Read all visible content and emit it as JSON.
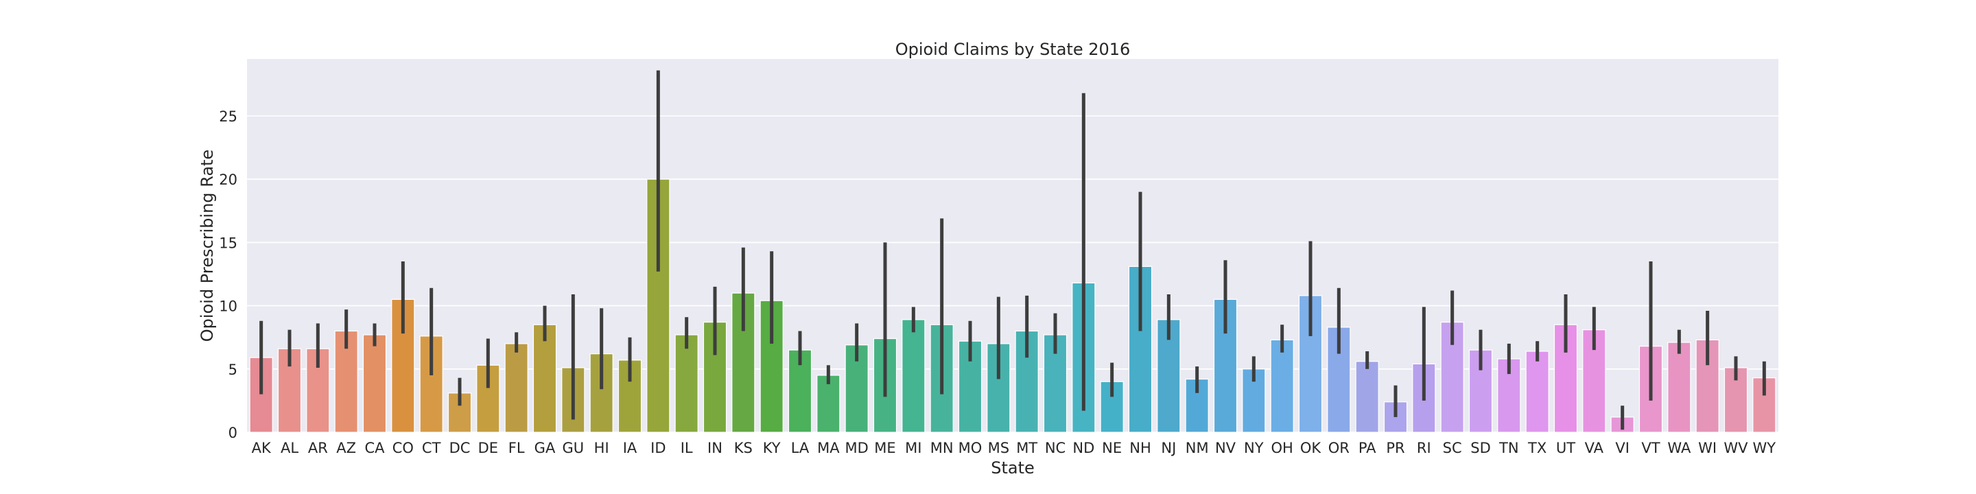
{
  "chart_data": {
    "type": "bar",
    "title": "Opioid Claims by State 2016",
    "xlabel": "State",
    "ylabel": "Opioid Prescribing Rate",
    "ylim": [
      0,
      29.5
    ],
    "yticks": [
      0,
      5,
      10,
      15,
      20,
      25
    ],
    "grid": true,
    "background": "#eaeaf2",
    "errorbar_color": "#3d3d3d",
    "categories": [
      "AK",
      "AL",
      "AR",
      "AZ",
      "CA",
      "CO",
      "CT",
      "DC",
      "DE",
      "FL",
      "GA",
      "GU",
      "HI",
      "IA",
      "ID",
      "IL",
      "IN",
      "KS",
      "KY",
      "LA",
      "MA",
      "MD",
      "ME",
      "MI",
      "MN",
      "MO",
      "MS",
      "MT",
      "NC",
      "ND",
      "NE",
      "NH",
      "NJ",
      "NM",
      "NV",
      "NY",
      "OH",
      "OK",
      "OR",
      "PA",
      "PR",
      "RI",
      "SC",
      "SD",
      "TN",
      "TX",
      "UT",
      "VA",
      "VI",
      "VT",
      "WA",
      "WI",
      "WV",
      "WY"
    ],
    "values": [
      5.9,
      6.6,
      6.6,
      8.0,
      7.7,
      10.5,
      7.6,
      3.1,
      5.3,
      7.0,
      8.5,
      5.1,
      6.2,
      5.7,
      20.0,
      7.7,
      8.7,
      11.0,
      10.4,
      6.5,
      4.5,
      6.9,
      7.4,
      8.9,
      8.5,
      7.2,
      7.0,
      8.0,
      7.7,
      11.8,
      4.0,
      13.1,
      8.9,
      4.2,
      10.5,
      5.0,
      7.3,
      10.8,
      8.3,
      5.6,
      2.4,
      5.4,
      8.7,
      6.5,
      5.8,
      6.4,
      8.5,
      8.1,
      1.2,
      6.8,
      7.1,
      7.3,
      5.1,
      4.3
    ],
    "error_low": [
      3.0,
      5.2,
      5.1,
      6.6,
      6.8,
      7.8,
      4.5,
      2.1,
      3.5,
      6.3,
      7.2,
      1.0,
      3.4,
      4.0,
      12.7,
      6.6,
      6.1,
      8.0,
      7.0,
      5.3,
      3.8,
      5.6,
      2.8,
      7.9,
      3.0,
      5.6,
      4.2,
      5.9,
      6.2,
      1.7,
      2.8,
      8.0,
      7.3,
      3.1,
      7.8,
      4.0,
      6.3,
      7.6,
      6.2,
      5.0,
      1.2,
      2.5,
      6.9,
      4.9,
      4.6,
      5.6,
      6.3,
      6.5,
      0.2,
      2.5,
      6.2,
      5.3,
      4.1,
      2.9
    ],
    "error_high": [
      8.8,
      8.1,
      8.6,
      9.7,
      8.6,
      13.5,
      11.4,
      4.3,
      7.4,
      7.9,
      10.0,
      10.9,
      9.8,
      7.5,
      28.6,
      9.1,
      11.5,
      14.6,
      14.3,
      8.0,
      5.3,
      8.6,
      15.0,
      9.9,
      16.9,
      8.8,
      10.7,
      10.8,
      9.4,
      26.8,
      5.5,
      19.0,
      10.9,
      5.2,
      13.6,
      6.0,
      8.5,
      15.1,
      11.4,
      6.4,
      3.7,
      9.9,
      11.2,
      8.1,
      7.0,
      7.2,
      10.9,
      9.9,
      2.1,
      13.5,
      8.1,
      9.6,
      6.0,
      5.6
    ],
    "colors": [
      "#e68a93",
      "#e8908c",
      "#e8928a",
      "#e69072",
      "#e39064",
      "#d9913f",
      "#d69a47",
      "#ce9d48",
      "#c59e40",
      "#bb9c45",
      "#b39f3e",
      "#ac9f42",
      "#a6a13f",
      "#9fa43a",
      "#96a63a",
      "#87a83e",
      "#79a83f",
      "#66a843",
      "#57ac43",
      "#4bb15b",
      "#4ab26c",
      "#48b17a",
      "#47b385",
      "#44b491",
      "#48b39b",
      "#46b3a2",
      "#47b2ab",
      "#48b2b2",
      "#49b2bb",
      "#47b4c3",
      "#45b1c8",
      "#47adc8",
      "#4ea9cc",
      "#52a9d7",
      "#59aad8",
      "#62abe0",
      "#6aaee5",
      "#7eb0ea",
      "#8aa9e9",
      "#a0a5e8",
      "#aca4ec",
      "#b69fed",
      "#c6a1ef",
      "#cc9ef0",
      "#d798ee",
      "#df96ee",
      "#e790e7",
      "#e792e1",
      "#e796d7",
      "#e896cc",
      "#e794c3",
      "#e495b8",
      "#e595af",
      "#e795a6"
    ]
  }
}
